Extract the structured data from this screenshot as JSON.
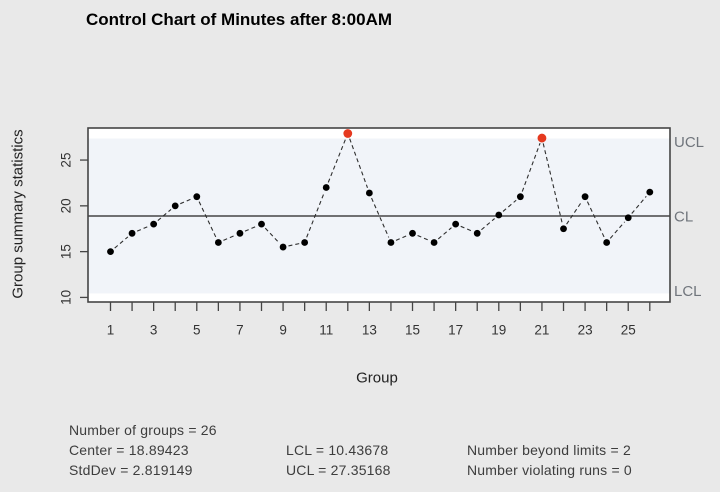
{
  "title": "Control Chart of Minutes after 8:00AM",
  "chart_data": {
    "type": "line",
    "title": "Control Chart of Minutes after 8:00AM",
    "xlabel": "Group",
    "ylabel": "Group summary statistics",
    "groups": [
      1,
      2,
      3,
      4,
      5,
      6,
      7,
      8,
      9,
      10,
      11,
      12,
      13,
      14,
      15,
      16,
      17,
      18,
      19,
      20,
      21,
      22,
      23,
      24,
      25,
      26
    ],
    "values": [
      15,
      17,
      18,
      20,
      21,
      16,
      17,
      18,
      15.5,
      16,
      22,
      27.9,
      21.4,
      16,
      17,
      16,
      18,
      17,
      19,
      21,
      27.4,
      17.5,
      21,
      16,
      18.7,
      21.5
    ],
    "beyond_limits_groups": [
      12,
      21
    ],
    "center": 18.89423,
    "stddev": 2.819149,
    "lcl": 10.43678,
    "ucl": 27.35168,
    "number_of_groups": 26,
    "number_beyond_limits": 2,
    "number_violating_runs": 0,
    "ylim": [
      9.5,
      28.5
    ],
    "yticks": [
      10,
      15,
      20,
      25
    ],
    "xtick_labels": [
      1,
      3,
      5,
      7,
      9,
      11,
      13,
      15,
      17,
      19,
      21,
      23,
      25
    ],
    "limit_labels": {
      "ucl": "UCL",
      "cl": "CL",
      "lcl": "LCL"
    },
    "grid": false,
    "legend": false,
    "colors": {
      "point": "#000000",
      "beyond_limit_point": "#E5391F",
      "connect_line": "#2F2F2F",
      "in_limits_band": "#F1F4F9",
      "plot_background": "#FFFFFF",
      "axis": "#454545",
      "tick_text": "#333333",
      "limit_label_text": "#70757C",
      "page_background": "#E9E9E9"
    }
  },
  "stats": {
    "number_of_groups": "Number of groups = 26",
    "center": "Center = 18.89423",
    "stddev": "StdDev = 2.819149",
    "lcl": "LCL = 10.43678",
    "ucl": "UCL = 27.35168",
    "beyond_limits": "Number beyond limits = 2",
    "violating_runs": "Number violating runs = 0"
  }
}
